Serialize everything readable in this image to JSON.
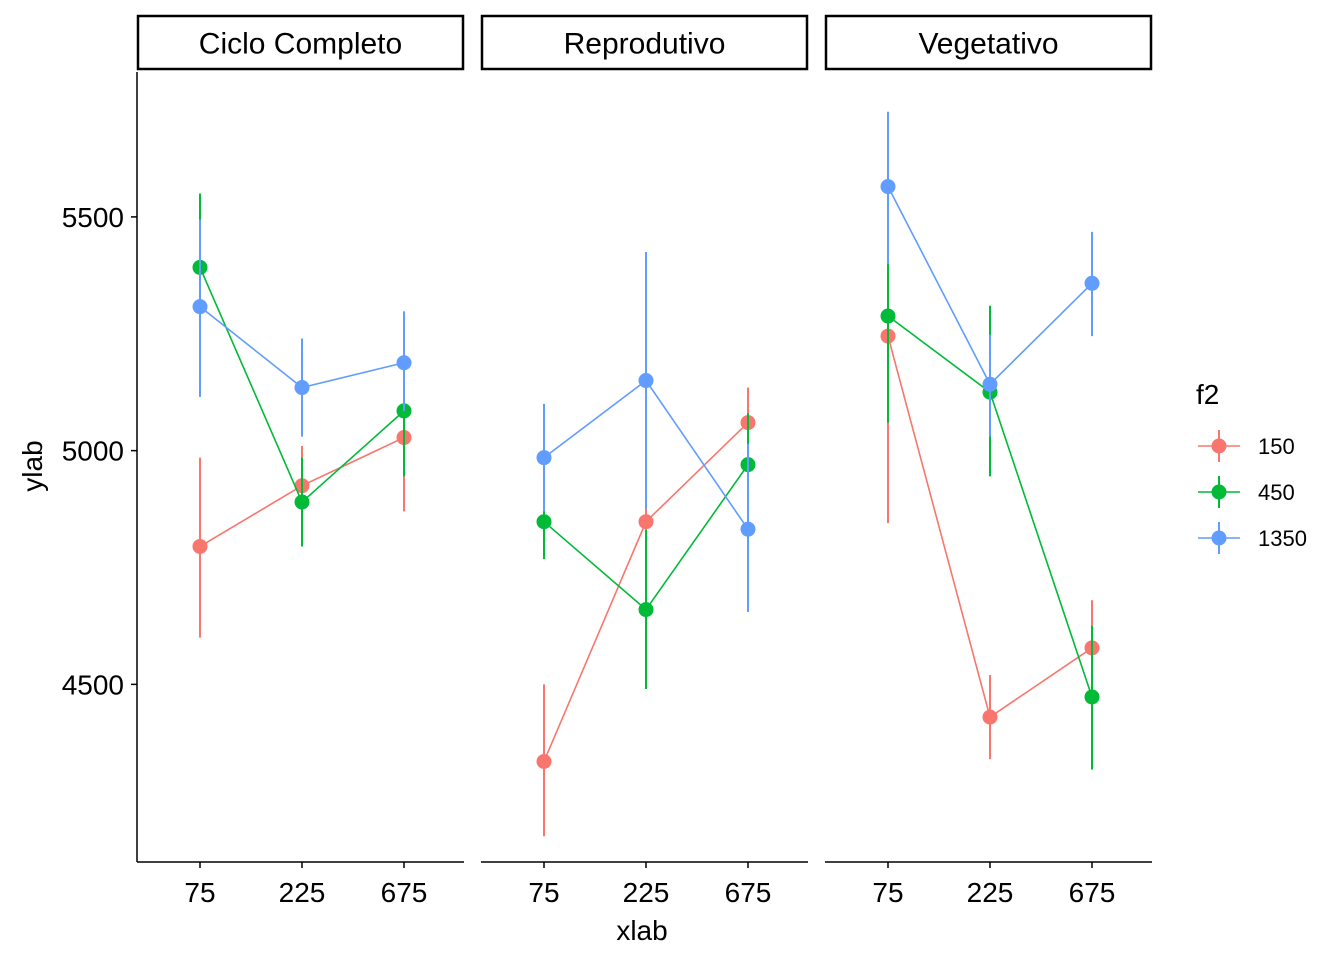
{
  "chart_data": {
    "type": "line",
    "xlabel": "xlab",
    "ylabel": "ylab",
    "categories": [
      "75",
      "225",
      "675"
    ],
    "yticks": [
      4500,
      5000,
      5500
    ],
    "ylim": [
      4120,
      5810
    ],
    "legend": {
      "title": "f2",
      "position": "right"
    },
    "series_colors": {
      "150": "#F8766D",
      "450": "#00BA38",
      "1350": "#619CFF"
    },
    "panels": [
      {
        "strip": "Ciclo Completo",
        "series": [
          {
            "name": "150",
            "values": [
              4795,
              4925,
              5028
            ],
            "lower": [
              4600,
              4840,
              4870
            ],
            "upper": [
              4985,
              5010,
              5185
            ]
          },
          {
            "name": "450",
            "values": [
              5392,
              4890,
              5085
            ],
            "lower": [
              5235,
              4795,
              4945
            ],
            "upper": [
              5550,
              4985,
              5225
            ]
          },
          {
            "name": "1350",
            "values": [
              5308,
              5135,
              5188
            ],
            "lower": [
              5115,
              5030,
              5085
            ],
            "upper": [
              5495,
              5240,
              5298
            ]
          }
        ]
      },
      {
        "strip": "Reprodutivo",
        "series": [
          {
            "name": "150",
            "values": [
              4335,
              4848,
              5060
            ],
            "lower": [
              4175,
              4700,
              4985
            ],
            "upper": [
              4500,
              4990,
              5135
            ]
          },
          {
            "name": "450",
            "values": [
              4848,
              4660,
              4970
            ],
            "lower": [
              4768,
              4490,
              4860
            ],
            "upper": [
              4925,
              4830,
              5080
            ]
          },
          {
            "name": "1350",
            "values": [
              4985,
              5150,
              4832
            ],
            "lower": [
              4870,
              4875,
              4655
            ],
            "upper": [
              5100,
              5425,
              5015
            ]
          }
        ]
      },
      {
        "strip": "Vegetativo",
        "series": [
          {
            "name": "150",
            "values": [
              5245,
              4430,
              4578
            ],
            "lower": [
              4845,
              4340,
              4475
            ],
            "upper": [
              5400,
              4520,
              4680
            ]
          },
          {
            "name": "450",
            "values": [
              5288,
              5125,
              4473
            ],
            "lower": [
              5060,
              4945,
              4318
            ],
            "upper": [
              5400,
              5310,
              4625
            ]
          },
          {
            "name": "1350",
            "values": [
              5565,
              5142,
              5358
            ],
            "lower": [
              5400,
              5030,
              5245
            ],
            "upper": [
              5725,
              5248,
              5468
            ]
          }
        ]
      }
    ]
  }
}
